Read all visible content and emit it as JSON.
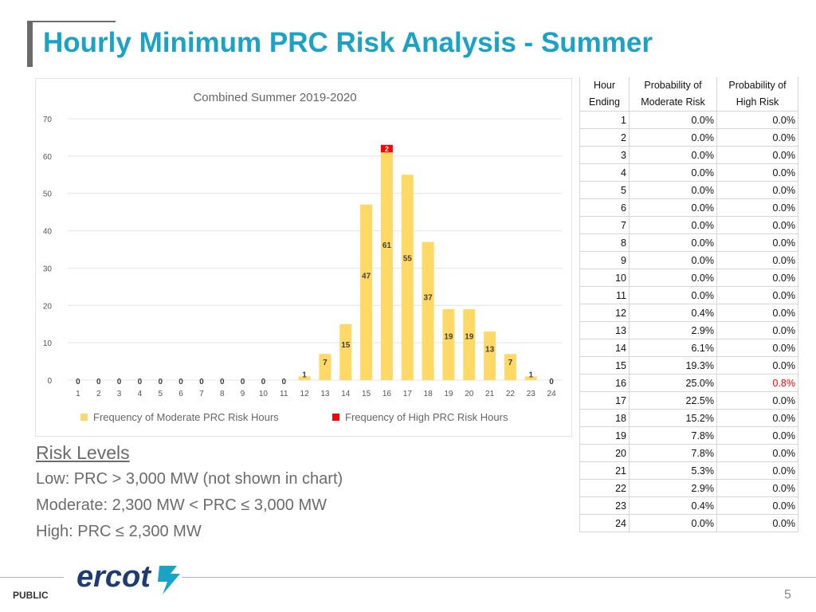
{
  "title": "Hourly Minimum PRC Risk Analysis - Summer",
  "colors": {
    "accent": "#1ba3c6",
    "moderate": "#ffd966",
    "high": "#ff0000",
    "text_gray": "#6b6b6b"
  },
  "chart_data": {
    "type": "bar",
    "title": "Combined Summer 2019-2020",
    "categories": [
      "1",
      "2",
      "3",
      "4",
      "5",
      "6",
      "7",
      "8",
      "9",
      "10",
      "11",
      "12",
      "13",
      "14",
      "15",
      "16",
      "17",
      "18",
      "19",
      "20",
      "21",
      "22",
      "23",
      "24"
    ],
    "series": [
      {
        "name": "Frequency of Moderate PRC Risk Hours",
        "values": [
          0,
          0,
          0,
          0,
          0,
          0,
          0,
          0,
          0,
          0,
          0,
          1,
          7,
          15,
          47,
          61,
          55,
          37,
          19,
          19,
          13,
          7,
          1,
          0
        ]
      },
      {
        "name": "Frequency of High PRC Risk Hours",
        "values": [
          0,
          0,
          0,
          0,
          0,
          0,
          0,
          0,
          0,
          0,
          0,
          0,
          0,
          0,
          0,
          2,
          0,
          0,
          0,
          0,
          0,
          0,
          0,
          0
        ]
      }
    ],
    "stacked": true,
    "ylim": [
      0,
      70
    ],
    "yticks": [
      "0",
      "10",
      "20",
      "30",
      "40",
      "50",
      "60",
      "70"
    ],
    "legend_position": "bottom",
    "grid": true
  },
  "table": {
    "headers": [
      [
        "Hour",
        "Ending"
      ],
      [
        "Probability of",
        "Moderate Risk"
      ],
      [
        "Probability of",
        "High Risk"
      ]
    ],
    "rows": [
      [
        "1",
        "0.0%",
        "0.0%"
      ],
      [
        "2",
        "0.0%",
        "0.0%"
      ],
      [
        "3",
        "0.0%",
        "0.0%"
      ],
      [
        "4",
        "0.0%",
        "0.0%"
      ],
      [
        "5",
        "0.0%",
        "0.0%"
      ],
      [
        "6",
        "0.0%",
        "0.0%"
      ],
      [
        "7",
        "0.0%",
        "0.0%"
      ],
      [
        "8",
        "0.0%",
        "0.0%"
      ],
      [
        "9",
        "0.0%",
        "0.0%"
      ],
      [
        "10",
        "0.0%",
        "0.0%"
      ],
      [
        "11",
        "0.0%",
        "0.0%"
      ],
      [
        "12",
        "0.4%",
        "0.0%"
      ],
      [
        "13",
        "2.9%",
        "0.0%"
      ],
      [
        "14",
        "6.1%",
        "0.0%"
      ],
      [
        "15",
        "19.3%",
        "0.0%"
      ],
      [
        "16",
        "25.0%",
        "0.8%"
      ],
      [
        "17",
        "22.5%",
        "0.0%"
      ],
      [
        "18",
        "15.2%",
        "0.0%"
      ],
      [
        "19",
        "7.8%",
        "0.0%"
      ],
      [
        "20",
        "7.8%",
        "0.0%"
      ],
      [
        "21",
        "5.3%",
        "0.0%"
      ],
      [
        "22",
        "2.9%",
        "0.0%"
      ],
      [
        "23",
        "0.4%",
        "0.0%"
      ],
      [
        "24",
        "0.0%",
        "0.0%"
      ]
    ],
    "highlight_color": "#ff0000"
  },
  "risk_levels": {
    "heading": "Risk Levels",
    "low": "Low: PRC > 3,000 MW (not shown in chart)",
    "moderate": "Moderate: 2,300 MW < PRC ≤ 3,000 MW",
    "high": "High: PRC ≤ 2,300 MW"
  },
  "footer": {
    "logo_text": "ercot",
    "label": "PUBLIC",
    "page": "5"
  }
}
